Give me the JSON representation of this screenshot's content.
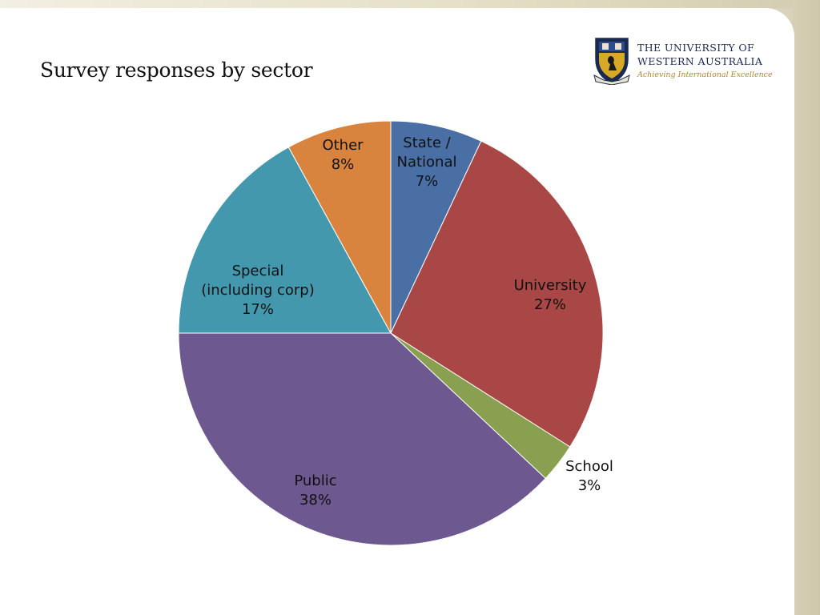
{
  "slide": {
    "title": "Survey responses by sector"
  },
  "logo": {
    "line1": "THE UNIVERSITY OF",
    "line2": "WESTERN AUSTRALIA",
    "tagline": "Achieving International Excellence",
    "crest_icon": "university-crest-icon",
    "colors": {
      "navy": "#1b2a4f",
      "gold": "#d6a928"
    }
  },
  "chart_data": {
    "type": "pie",
    "title": "",
    "start": "12 o'clock, clockwise",
    "categories": [
      "State / National",
      "University",
      "School",
      "Public",
      "Special (including corp)",
      "Other"
    ],
    "values": [
      7,
      27,
      3,
      38,
      17,
      8
    ],
    "value_labels": [
      "7%",
      "27%",
      "3%",
      "38%",
      "17%",
      "8%"
    ],
    "colors": [
      "#4a6fa5",
      "#a84745",
      "#88a050",
      "#6e5890",
      "#4498ad",
      "#d8843f"
    ],
    "label_lines": [
      [
        "State /",
        "National",
        "7%"
      ],
      [
        "University",
        "27%"
      ],
      [
        "School",
        "3%"
      ],
      [
        "Public",
        "38%"
      ],
      [
        "Special",
        "(including corp)",
        "17%"
      ],
      [
        "Other",
        "8%"
      ]
    ]
  }
}
